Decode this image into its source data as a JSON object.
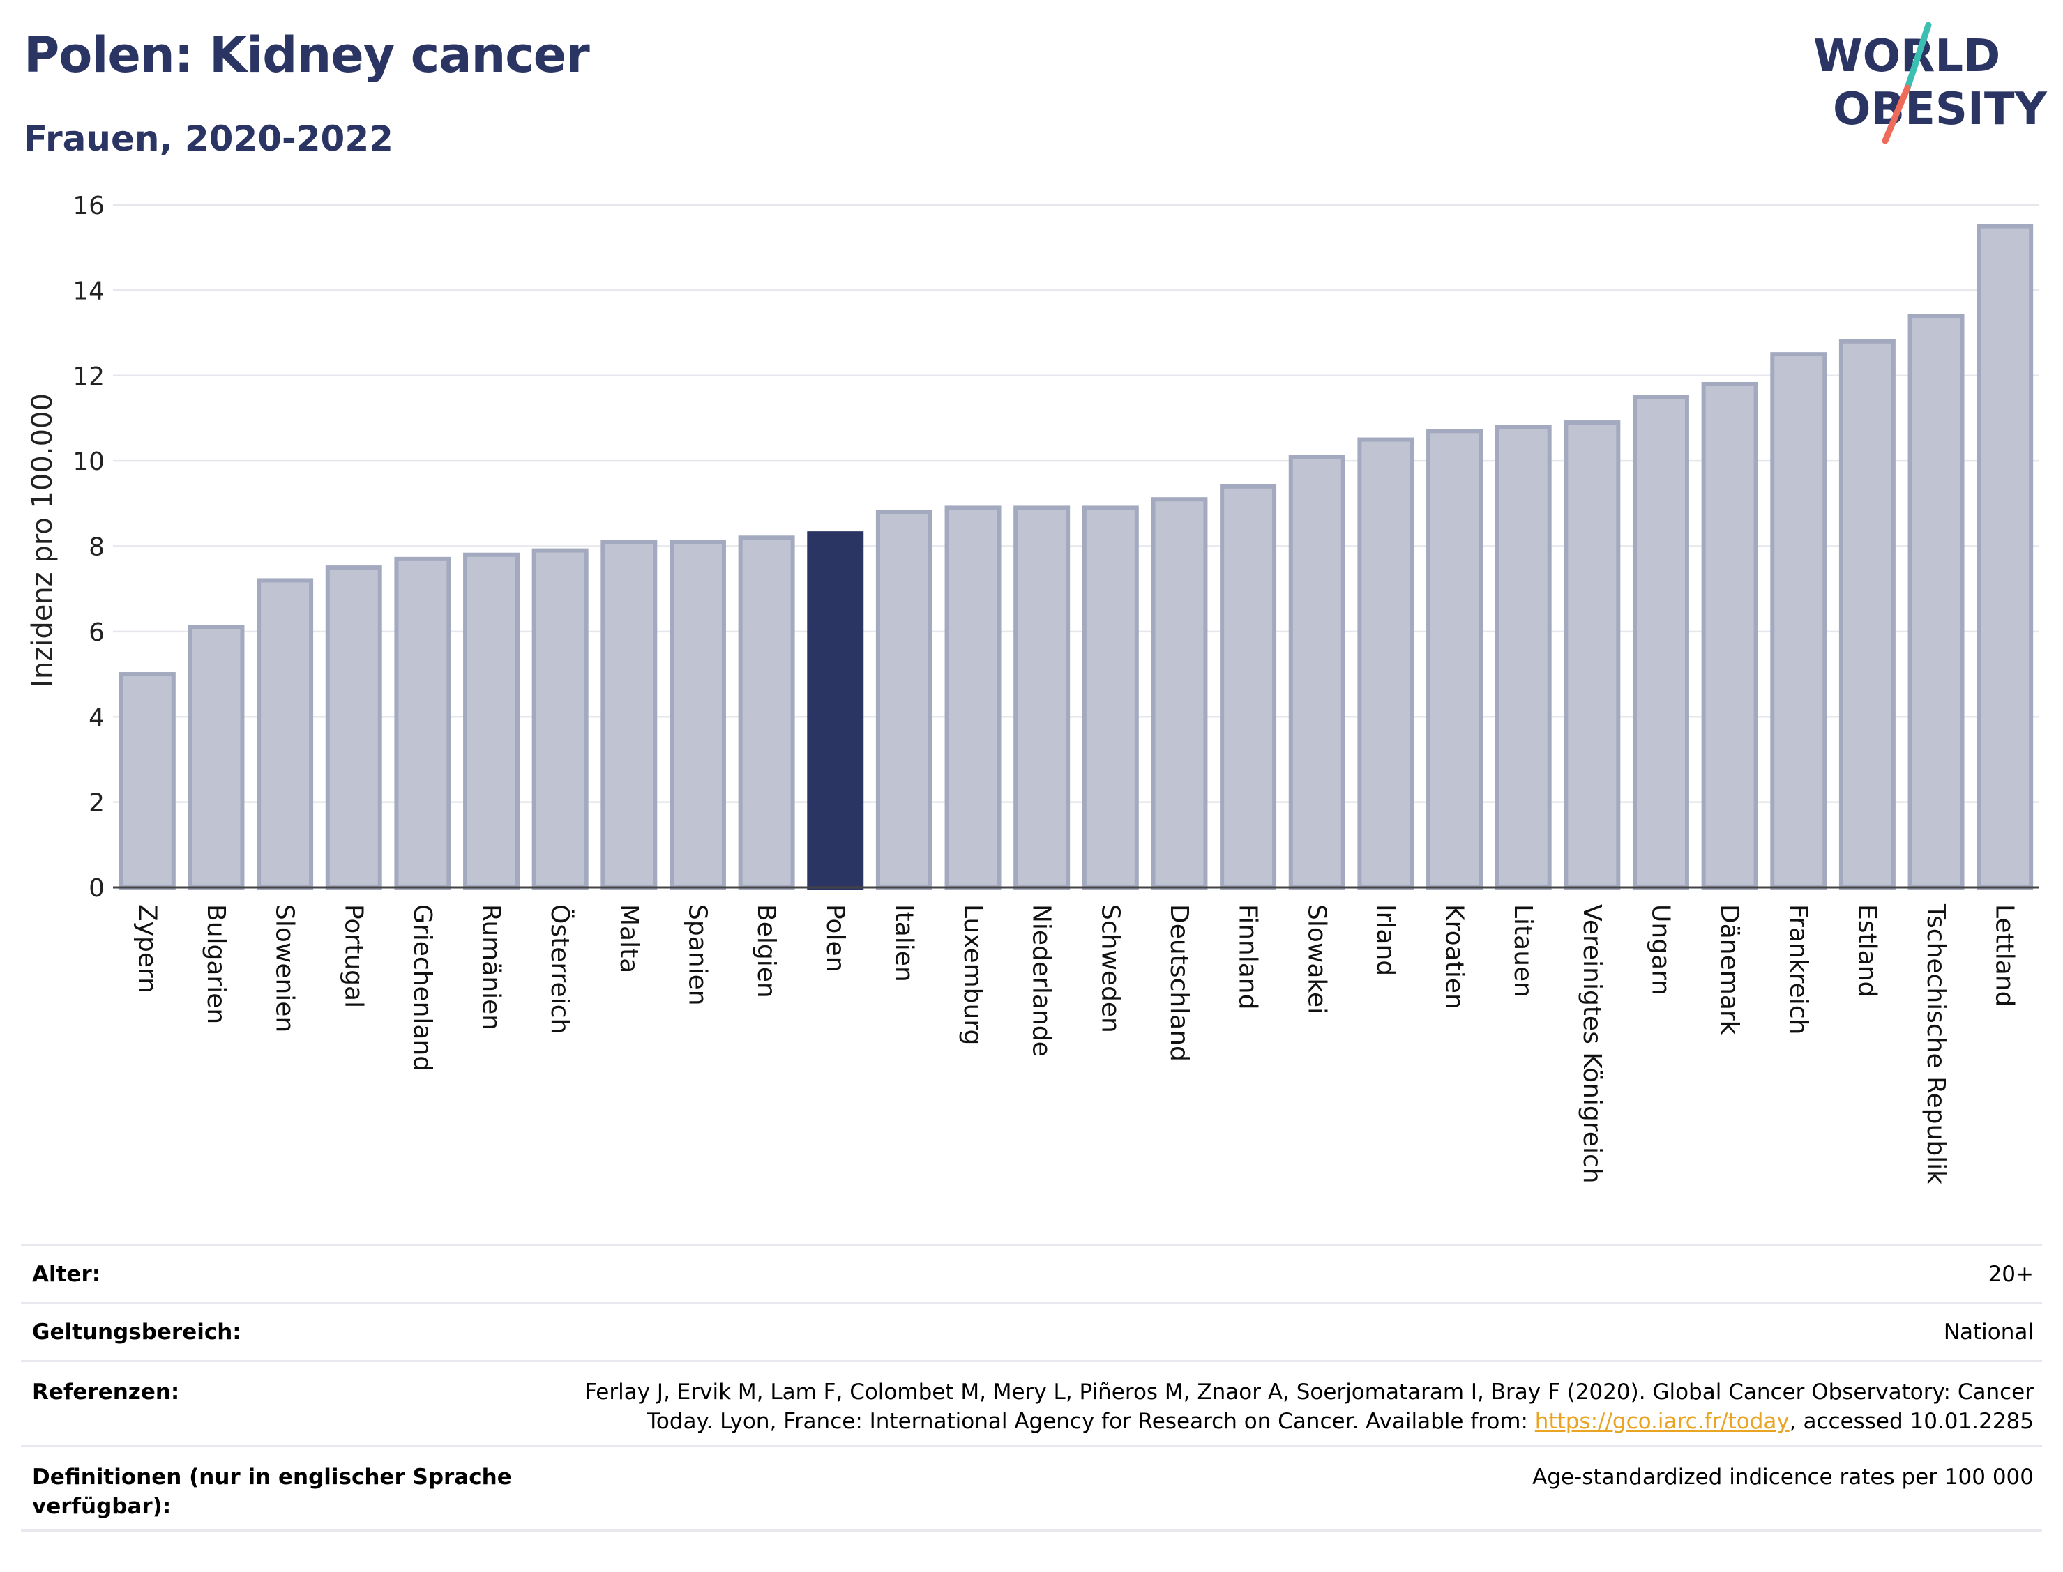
{
  "header": {
    "title": "Polen: Kidney cancer",
    "subtitle": "Frauen, 2020-2022"
  },
  "logo": {
    "line1": "WORLD",
    "line2": "OBESITY",
    "text_color": "#2b3563",
    "slash_color_top": "#3bbfb3",
    "slash_color_bottom": "#ee6b5a"
  },
  "colors": {
    "bar_default": "#c0c4d2",
    "bar_default_stroke": "#a3a9be",
    "bar_highlight": "#2b3563",
    "grid": "#e6e7ec",
    "axis": "#444444"
  },
  "chart_data": {
    "type": "bar",
    "title": "",
    "ylabel": "Inzidenz pro 100.000",
    "xlabel": "",
    "ylim": [
      0,
      16
    ],
    "yticks": [
      0,
      2,
      4,
      6,
      8,
      10,
      12,
      14,
      16
    ],
    "grid": true,
    "highlight": "Polen",
    "categories": [
      "Zypern",
      "Bulgarien",
      "Slowenien",
      "Portugal",
      "Griechenland",
      "Rumänien",
      "Österreich",
      "Malta",
      "Spanien",
      "Belgien",
      "Polen",
      "Italien",
      "Luxemburg",
      "Niederlande",
      "Schweden",
      "Deutschland",
      "Finnland",
      "Slowakei",
      "Irland",
      "Kroatien",
      "Litauen",
      "Vereinigtes Königreich",
      "Ungarn",
      "Dänemark",
      "Frankreich",
      "Estland",
      "Tschechische Republik",
      "Lettland"
    ],
    "values": [
      5.0,
      6.1,
      7.2,
      7.5,
      7.7,
      7.8,
      7.9,
      8.1,
      8.1,
      8.2,
      8.3,
      8.8,
      8.9,
      8.9,
      8.9,
      9.1,
      9.4,
      10.1,
      10.5,
      10.7,
      10.8,
      10.9,
      11.5,
      11.8,
      12.5,
      12.8,
      13.4,
      15.5
    ]
  },
  "meta": {
    "age_label": "Alter:",
    "age_value": "20+",
    "scope_label": "Geltungsbereich:",
    "scope_value": "National",
    "refs_label": "Referenzen:",
    "refs_text_1": "Ferlay J, Ervik M, Lam F, Colombet M, Mery L, Piñeros M, Znaor A, Soerjomataram I, Bray F (2020). Global Cancer Observatory: Cancer",
    "refs_text_2": "Today. Lyon, France: International Agency for Research on Cancer. Available from: ",
    "refs_link": "https://gco.iarc.fr/today",
    "refs_text_3": ", accessed 10.01.2285",
    "defs_label": "Definitionen (nur in englischer Sprache verfügbar):",
    "defs_value": "Age-standardized indicence rates per 100 000"
  }
}
